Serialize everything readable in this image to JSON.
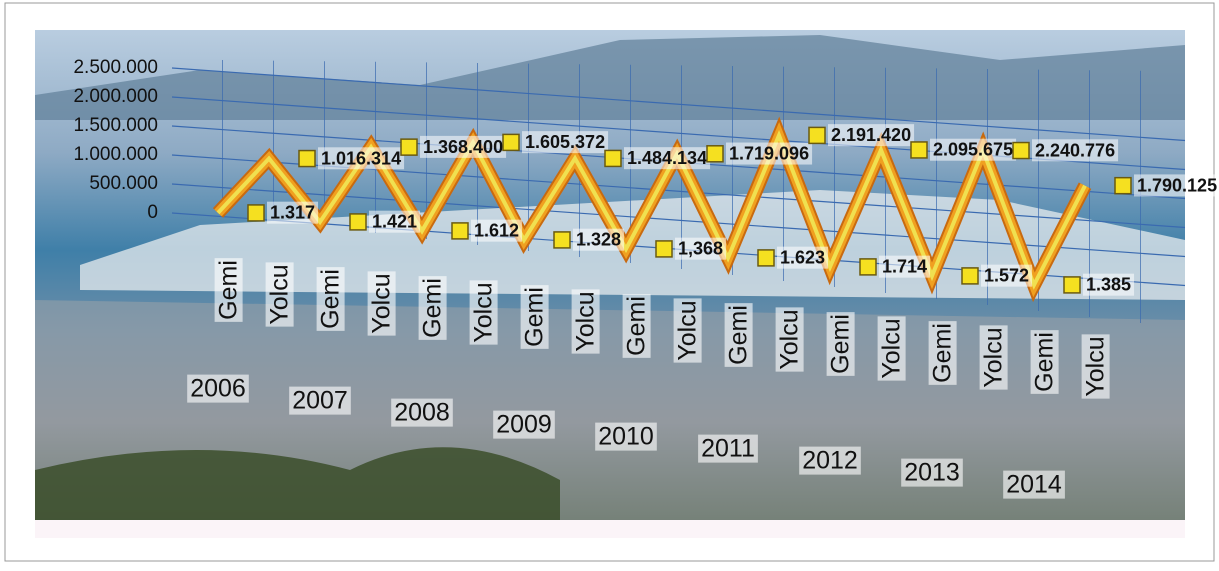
{
  "chart_data": {
    "type": "line",
    "categories": [
      "Gemi",
      "Yolcu",
      "Gemi",
      "Yolcu",
      "Gemi",
      "Yolcu",
      "Gemi",
      "Yolcu",
      "Gemi",
      "Yolcu",
      "Gemi",
      "Yolcu",
      "Gemi",
      "Yolcu",
      "Gemi",
      "Yolcu",
      "Gemi",
      "Yolcu"
    ],
    "groups": [
      "2006",
      "2007",
      "2008",
      "2009",
      "2010",
      "2011",
      "2012",
      "2013",
      "2014"
    ],
    "values": [
      1317,
      1016314,
      1421,
      1368400,
      1612,
      1605372,
      1328,
      1484134,
      1368,
      1719096,
      1623,
      2191420,
      1714,
      2095675,
      1572,
      2240776,
      1385,
      1790125
    ],
    "value_labels": [
      "1.317",
      "1.016.314",
      "1.421",
      "1.368.400",
      "1.612",
      "1.605.372",
      "1.328",
      "1.484.134",
      "1,368",
      "1.719.096",
      "1.623",
      "2.191.420",
      "1.714",
      "2.095.675",
      "1.572",
      "2.240.776",
      "1.385",
      "1.790.125"
    ],
    "color": "#f0a020",
    "marker_color": "#f5e020",
    "ylim": [
      0,
      2500000
    ],
    "yticks": [
      {
        "value": 0,
        "label": "0"
      },
      {
        "value": 500000,
        "label": "500.000"
      },
      {
        "value": 1000000,
        "label": "1.000.000"
      },
      {
        "value": 1500000,
        "label": "1.500.000"
      },
      {
        "value": 2000000,
        "label": "2.000.000"
      },
      {
        "value": 2500000,
        "label": "2.500.000"
      }
    ],
    "grid": true
  }
}
